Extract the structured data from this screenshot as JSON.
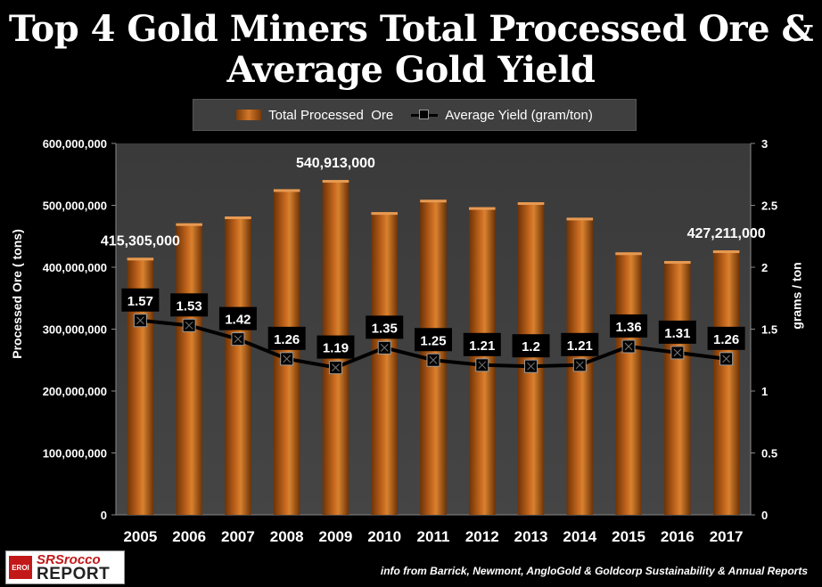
{
  "title_line1": "Top 4 Gold Miners Total Processed Ore &",
  "title_line2": "Average Gold Yield",
  "legend": {
    "bar_label": "Total Processed  Ore",
    "line_label": "Average Yield (gram/ton)"
  },
  "footer": "info from Barrick, Newmont, AngloGold & Goldcorp Sustainability & Annual Reports",
  "logo": {
    "badge": "EROI",
    "name1": "SRSrocco",
    "name2": "REPORT"
  },
  "colors": {
    "bar": "#c8691f",
    "line": "#000000",
    "plot_bg": "#454545"
  },
  "chart_data": {
    "type": "bar",
    "categories": [
      "2005",
      "2006",
      "2007",
      "2008",
      "2009",
      "2010",
      "2011",
      "2012",
      "2013",
      "2014",
      "2015",
      "2016",
      "2017"
    ],
    "series": [
      {
        "name": "Total Processed  Ore",
        "type": "bar",
        "axis": "left",
        "values": [
          415305000,
          471000000,
          482000000,
          526000000,
          540913000,
          489000000,
          509000000,
          497000000,
          505000000,
          480000000,
          424000000,
          410000000,
          427211000
        ]
      },
      {
        "name": "Average Yield (gram/ton)",
        "type": "line",
        "axis": "right",
        "values": [
          1.57,
          1.53,
          1.42,
          1.26,
          1.19,
          1.35,
          1.25,
          1.21,
          1.2,
          1.21,
          1.36,
          1.31,
          1.26
        ]
      }
    ],
    "bar_data_labels": [
      {
        "index": 0,
        "text": "415,305,000"
      },
      {
        "index": 4,
        "text": "540,913,000"
      },
      {
        "index": 12,
        "text": "427,211,000"
      }
    ],
    "line_data_labels": [
      "1.57",
      "1.53",
      "1.42",
      "1.26",
      "1.19",
      "1.35",
      "1.25",
      "1.21",
      "1.2",
      "1.21",
      "1.36",
      "1.31",
      "1.26"
    ],
    "ylabel": "Processed Ore ( tons)",
    "ylabel_right": "grams / ton",
    "ylim": [
      0,
      600000000
    ],
    "ylim_right": [
      0,
      3
    ],
    "yticks": [
      "0",
      "100,000,000",
      "200,000,000",
      "300,000,000",
      "400,000,000",
      "500,000,000",
      "600,000,000"
    ],
    "yticks_right": [
      "0",
      "0.5",
      "1",
      "1.5",
      "2",
      "2.5",
      "3"
    ],
    "legend_position": "top",
    "grid": false
  }
}
